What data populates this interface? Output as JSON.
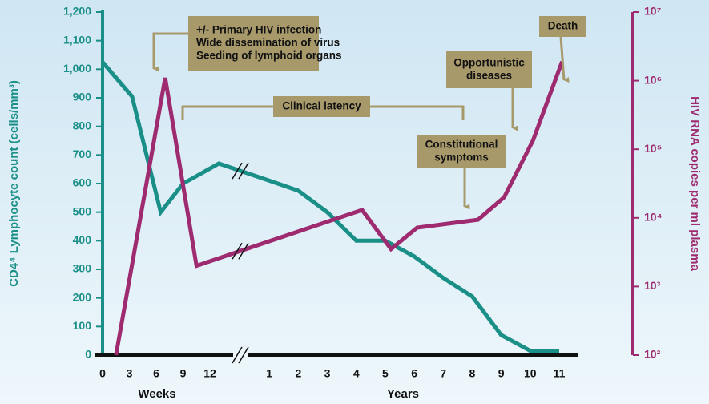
{
  "chart_data": {
    "type": "line",
    "ylabel": "CD4⁴ Lymphocyte count (cells/mm³)",
    "y2label": "HIV RNA copies per ml plasma",
    "ylim": [
      0,
      1200
    ],
    "yticks": [
      0,
      100,
      200,
      300,
      400,
      500,
      600,
      700,
      800,
      900,
      {
        "value": 1000,
        "label": "1,000"
      },
      {
        "value": 1100,
        "label": "1,100"
      },
      {
        "value": 1200,
        "label": "1,200"
      }
    ],
    "y2lim": [
      100,
      10000000
    ],
    "y2log": true,
    "y2ticks": [
      {
        "value": 100,
        "label": "10²"
      },
      {
        "value": 1000,
        "label": "10³"
      },
      {
        "value": 10000,
        "label": "10⁴"
      },
      {
        "value": 100000,
        "label": "10⁵"
      },
      {
        "value": 1000000,
        "label": "10⁶"
      },
      {
        "value": 10000000,
        "label": "10⁷"
      }
    ],
    "weeks_axis": {
      "label": "Weeks",
      "xlim": [
        0,
        12
      ],
      "xticks": [
        0,
        3,
        6,
        9,
        12
      ]
    },
    "years_axis": {
      "label": "Years",
      "xlim": [
        0,
        11
      ],
      "xticks": [
        1,
        2,
        3,
        4,
        5,
        6,
        7,
        8,
        9,
        10,
        11
      ]
    },
    "series": [
      {
        "color": "#1a8f87",
        "weeks": {
          "x": [
            0,
            3.3,
            6.5,
            9,
            13
          ],
          "values": [
            1025,
            905,
            500,
            600,
            670
          ]
        },
        "years": {
          "x": [
            1,
            2,
            3,
            4,
            5,
            6,
            7,
            8,
            9,
            10,
            11
          ],
          "values": [
            610,
            575,
            500,
            400,
            400,
            345,
            270,
            205,
            70,
            15,
            13
          ]
        }
      },
      {
        "color": "#9e2a6f",
        "axis": "y2",
        "weeks": {
          "x": [
            1.5,
            7,
            10.5
          ],
          "values": [
            100,
            1100000,
            2000
          ]
        },
        "years": {
          "x": [
            4.2,
            5.2,
            6.1,
            8.2,
            9.1,
            10.1,
            11.1
          ],
          "values": [
            13000,
            3500,
            7200,
            9400,
            20000,
            135000,
            1900000
          ]
        }
      }
    ],
    "annotations": [
      {
        "lines": [
          "+/- Primary HIV infection",
          "Wide dissemination of virus",
          "Seeding of lymphoid organs"
        ]
      },
      {
        "lines": [
          "Clinical latency"
        ]
      },
      {
        "lines": [
          "Constitutional",
          "symptoms"
        ]
      },
      {
        "lines": [
          "Opportunistic",
          "diseases"
        ]
      },
      {
        "lines": [
          "Death"
        ]
      }
    ]
  }
}
